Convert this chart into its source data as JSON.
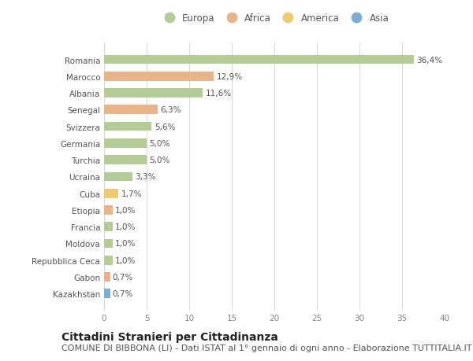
{
  "countries": [
    "Romania",
    "Marocco",
    "Albania",
    "Senegal",
    "Svizzera",
    "Germania",
    "Turchia",
    "Ucraina",
    "Cuba",
    "Etiopia",
    "Francia",
    "Moldova",
    "Repubblica Ceca",
    "Gabon",
    "Kazakhstan"
  ],
  "values": [
    36.4,
    12.9,
    11.6,
    6.3,
    5.6,
    5.0,
    5.0,
    3.3,
    1.7,
    1.0,
    1.0,
    1.0,
    1.0,
    0.7,
    0.7
  ],
  "labels": [
    "36,4%",
    "12,9%",
    "11,6%",
    "6,3%",
    "5,6%",
    "5,0%",
    "5,0%",
    "3,3%",
    "1,7%",
    "1,0%",
    "1,0%",
    "1,0%",
    "1,0%",
    "0,7%",
    "0,7%"
  ],
  "continents": [
    "Europa",
    "Africa",
    "Europa",
    "Africa",
    "Europa",
    "Europa",
    "Europa",
    "Europa",
    "America",
    "Africa",
    "Europa",
    "Europa",
    "Europa",
    "Africa",
    "Asia"
  ],
  "continent_colors": {
    "Europa": "#b5cc96",
    "Africa": "#e8b48a",
    "America": "#f0ca6e",
    "Asia": "#7ab0d4"
  },
  "legend_order": [
    "Europa",
    "Africa",
    "America",
    "Asia"
  ],
  "background_color": "#ffffff",
  "grid_color": "#d8d8d8",
  "xlim": [
    0,
    40
  ],
  "xticks": [
    0,
    5,
    10,
    15,
    20,
    25,
    30,
    35,
    40
  ],
  "title": "Cittadini Stranieri per Cittadinanza",
  "subtitle": "COMUNE DI BIBBONA (LI) - Dati ISTAT al 1° gennaio di ogni anno - Elaborazione TUTTITALIA.IT",
  "title_fontsize": 10,
  "subtitle_fontsize": 8,
  "label_fontsize": 7.5,
  "tick_fontsize": 7.5,
  "bar_height": 0.55
}
